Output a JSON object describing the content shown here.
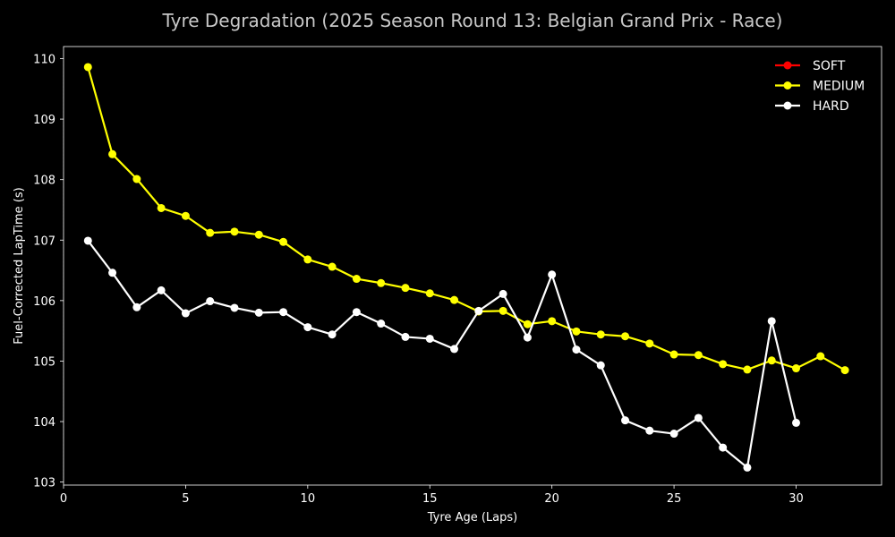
{
  "chart_data": {
    "type": "line",
    "title": "Tyre Degradation (2025 Season Round 13: Belgian Grand Prix - Race)",
    "xlabel": "Tyre Age (Laps)",
    "ylabel": "Fuel-Corrected LapTime (s)",
    "xlim": [
      0,
      33.5
    ],
    "ylim": [
      102.95,
      110.2
    ],
    "xticks": [
      0,
      5,
      10,
      15,
      20,
      25,
      30
    ],
    "yticks": [
      103,
      104,
      105,
      106,
      107,
      108,
      109,
      110
    ],
    "grid": true,
    "legend_position": "top-right",
    "series": [
      {
        "name": "SOFT",
        "color": "#ff0000",
        "x": [],
        "y": []
      },
      {
        "name": "MEDIUM",
        "color": "#ffff00",
        "x": [
          1,
          2,
          3,
          4,
          5,
          6,
          7,
          8,
          9,
          10,
          11,
          12,
          13,
          14,
          15,
          16,
          17,
          18,
          19,
          20,
          21,
          22,
          23,
          24,
          25,
          26,
          27,
          28,
          29,
          30,
          31,
          32
        ],
        "y": [
          109.86,
          108.42,
          108.01,
          107.53,
          107.4,
          107.12,
          107.14,
          107.09,
          106.97,
          106.68,
          106.56,
          106.36,
          106.29,
          106.21,
          106.12,
          106.01,
          105.82,
          105.83,
          105.61,
          105.66,
          105.49,
          105.44,
          105.41,
          105.29,
          105.11,
          105.1,
          104.95,
          104.86,
          105.01,
          104.88,
          105.08,
          104.85
        ]
      },
      {
        "name": "HARD",
        "color": "#ffffff",
        "x": [
          1,
          2,
          3,
          4,
          5,
          6,
          7,
          8,
          9,
          10,
          11,
          12,
          13,
          14,
          15,
          16,
          17,
          18,
          19,
          20,
          21,
          22,
          23,
          24,
          25,
          26,
          27,
          28,
          29,
          30
        ],
        "y": [
          106.99,
          106.46,
          105.89,
          106.17,
          105.79,
          105.99,
          105.88,
          105.8,
          105.81,
          105.56,
          105.44,
          105.81,
          105.62,
          105.4,
          105.37,
          105.2,
          105.83,
          106.11,
          105.39,
          106.43,
          105.19,
          104.93,
          104.02,
          103.85,
          103.8,
          104.06,
          103.57,
          103.24,
          105.66,
          103.98
        ]
      }
    ]
  }
}
